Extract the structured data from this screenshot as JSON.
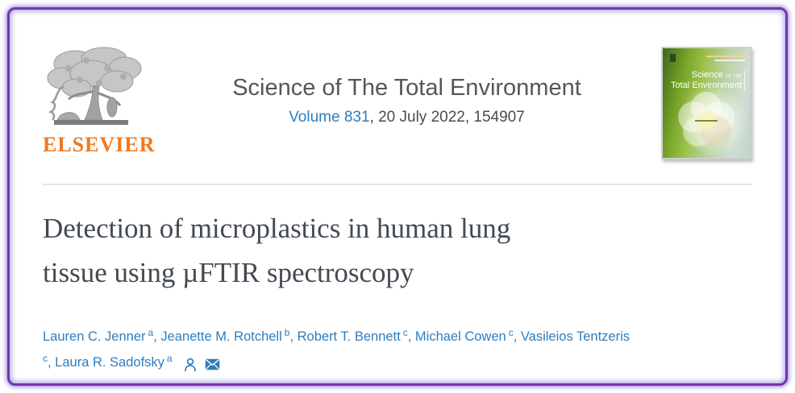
{
  "frame": {
    "border_color": "#7436ac",
    "glow_color": "#b2a5e8"
  },
  "header": {
    "publisher": {
      "wordmark": "ELSEVIER",
      "orange": "#f1781f"
    },
    "journal": {
      "title": "Science of The Total Environment",
      "volume_link": "Volume 831",
      "issue_rest": ", 20 July 2022, 154907"
    },
    "cover": {
      "title_main": "Science",
      "title_of_the": "OF THE",
      "title_line2": "Total Environment"
    }
  },
  "article": {
    "title_lines": [
      "Detection of microplastics in human lung",
      "tissue using µFTIR spectroscopy"
    ]
  },
  "authors": {
    "link_color": "#2e7dbe",
    "lines": [
      [
        {
          "t": "Lauren C. Jenner",
          "s": false
        },
        {
          "t": "a",
          "s": true
        },
        {
          "t": ", Jeanette M. Rotchell",
          "s": false
        },
        {
          "t": "b",
          "s": true
        },
        {
          "t": ", Robert T. Bennett",
          "s": false
        },
        {
          "t": "c",
          "s": true
        },
        {
          "t": ", Michael Cowen",
          "s": false
        },
        {
          "t": "c",
          "s": true
        },
        {
          "t": ", Vasileios Tentzeris",
          "s": false
        }
      ],
      [
        {
          "t": "c",
          "s": true
        },
        {
          "t": ", Laura R. Sadofsky",
          "s": false
        },
        {
          "t": "a",
          "s": true
        }
      ]
    ],
    "icons": [
      "corresponding-author-person-icon",
      "email-envelope-icon"
    ]
  }
}
